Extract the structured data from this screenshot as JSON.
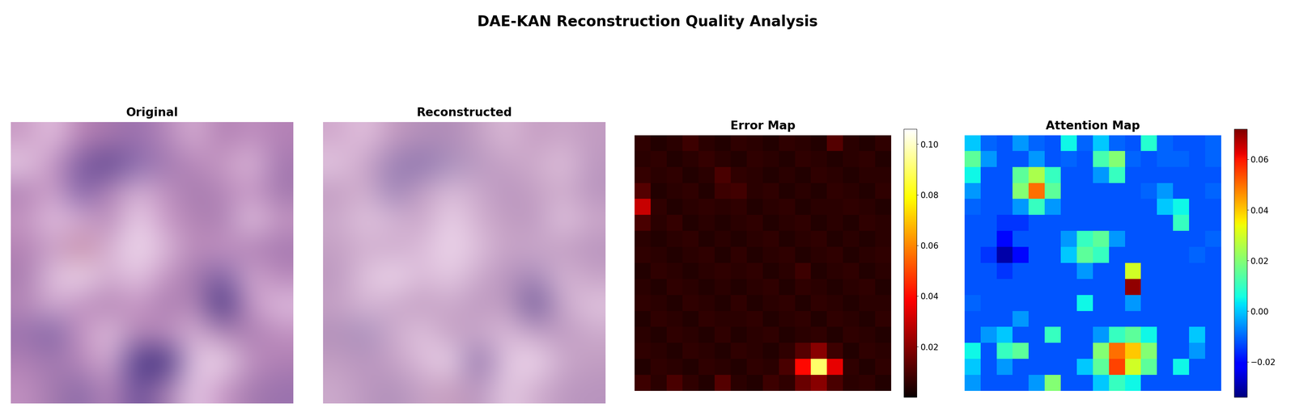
{
  "title": "DAE-KAN Reconstruction Quality Analysis",
  "chart_data": [
    {
      "type": "image",
      "title": "Original",
      "tick_labels": false,
      "pixels": [
        [
          "#c89ac4",
          "#e6c4e2",
          "#b882b4",
          "#a878ae",
          "#9a70ae",
          "#b688ba",
          "#d8b0d4",
          "#b07eb2",
          "#c090c0",
          "#b482b6"
        ],
        [
          "#e8cce6",
          "#c494c2",
          "#7a5aa0",
          "#5e4690",
          "#8a6cae",
          "#a078b0",
          "#b888ba",
          "#c69ac4",
          "#e0bcdc",
          "#a478b0"
        ],
        [
          "#b080b4",
          "#d0a4cc",
          "#8060a6",
          "#b486b8",
          "#d8b4d6",
          "#c092c0",
          "#a47aae",
          "#b486b8",
          "#c898c6",
          "#a278ae"
        ],
        [
          "#c496c2",
          "#e4c2e2",
          "#d4acd2",
          "#b88ab8",
          "#eed4ec",
          "#c898c6",
          "#b284b4",
          "#aa7eb2",
          "#e6c8e4",
          "#c496c2"
        ],
        [
          "#b482b4",
          "#c8a0c8",
          "#c48aa4",
          "#d8b4d6",
          "#f0dcee",
          "#dcbada",
          "#b888b8",
          "#c696c4",
          "#b080b4",
          "#a478b0"
        ],
        [
          "#a87cb0",
          "#e2c2e0",
          "#f0dcee",
          "#d2acd0",
          "#e6c8e4",
          "#c494c2",
          "#a47aae",
          "#7e60a4",
          "#d2aad0",
          "#b888ba"
        ],
        [
          "#b688b8",
          "#d4aed2",
          "#c090c0",
          "#b284b4",
          "#c898c6",
          "#a87cb0",
          "#b688b8",
          "#3c2c7c",
          "#c898c6",
          "#e0bee0"
        ],
        [
          "#9a72ae",
          "#7e62a4",
          "#c494c2",
          "#e2c2e0",
          "#b284b4",
          "#c090c0",
          "#d8b4d6",
          "#b284b4",
          "#a87cb0",
          "#c090c0"
        ],
        [
          "#b080b4",
          "#a078b0",
          "#b888ba",
          "#d8b0d4",
          "#4a3888",
          "#3c2c7c",
          "#e4c4e2",
          "#f0dcee",
          "#c090c0",
          "#b080b4"
        ],
        [
          "#c090c0",
          "#a47aae",
          "#8a6aa8",
          "#b888ba",
          "#6a4e98",
          "#a47aae",
          "#e8cce8",
          "#c898c6",
          "#a47aae",
          "#9a72ae"
        ]
      ]
    },
    {
      "type": "image",
      "title": "Reconstructed",
      "tick_labels": false,
      "pixels": [
        [
          "#d0a8cc",
          "#e4c4e0",
          "#c49ac0",
          "#b490ba",
          "#b08cb8",
          "#c4a0c4",
          "#dcbcd8",
          "#c49cc2",
          "#cca8ca",
          "#c29cc2"
        ],
        [
          "#e4c8e2",
          "#caa4c8",
          "#9a80b4",
          "#8c74ae",
          "#a890bc",
          "#b898c0",
          "#c6a2c6",
          "#ceaccc",
          "#e2c4de",
          "#bc98c0"
        ],
        [
          "#c29cc2",
          "#d4b2d0",
          "#9c82b6",
          "#c4a0c4",
          "#dcbeda",
          "#ccaacc",
          "#b894be",
          "#c4a0c4",
          "#d0aecd",
          "#b894be"
        ],
        [
          "#ccaacc",
          "#e2c6e0",
          "#d8b8d6",
          "#c8a4c8",
          "#ecd4ea",
          "#d2b0d0",
          "#c29ec2",
          "#bc98c0",
          "#e4c8e2",
          "#cca8ca"
        ],
        [
          "#c4a0c4",
          "#d2b0d0",
          "#ccaacc",
          "#dcbcda",
          "#eed8ec",
          "#dec0dc",
          "#c6a2c6",
          "#ccaacc",
          "#c29ec2",
          "#b894be"
        ],
        [
          "#bc98c0",
          "#e0c4de",
          "#f0daee",
          "#dabad8",
          "#e6cce4",
          "#ccaacc",
          "#b894be",
          "#a688b8",
          "#d8b8d6",
          "#c6a2c6"
        ],
        [
          "#c6a2c6",
          "#d8b8d6",
          "#ccaacc",
          "#c29ec2",
          "#ccaacc",
          "#bc98c0",
          "#c29ec2",
          "#6a5496",
          "#ccaacc",
          "#e2c6e0"
        ],
        [
          "#b290ba",
          "#a890bc",
          "#ccaacc",
          "#e2c6e0",
          "#c29ec2",
          "#ccaacc",
          "#dcbcda",
          "#c6a2c6",
          "#bc98c0",
          "#ccaacc"
        ],
        [
          "#c29ec2",
          "#b894be",
          "#c6a2c6",
          "#dcbcda",
          "#f0daee",
          "#8a6ca6",
          "#e2c6e0",
          "#f2dcf0",
          "#ccaacc",
          "#c29ec2"
        ],
        [
          "#ccaacc",
          "#bc98c0",
          "#b090ba",
          "#c6a2c6",
          "#c8a0c0",
          "#b894be",
          "#e6cce4",
          "#d2b0d0",
          "#bc98c0",
          "#b894be"
        ]
      ]
    },
    {
      "type": "heatmap",
      "title": "Error Map",
      "color": "hot",
      "tick_labels": false,
      "colorbar_range": [
        0,
        0.106
      ],
      "colorbar_ticks": [
        0.02,
        0.04,
        0.06,
        0.08,
        {
          "value": 0.1,
          "label": "0.10"
        }
      ],
      "cells": [
        [
          0.006,
          0.004,
          0.005,
          0.008,
          0.005,
          0.004,
          0.006,
          0.005,
          0.004,
          0.006,
          0.005,
          0.004,
          0.012,
          0.005,
          0.004,
          0.006
        ],
        [
          0.005,
          0.006,
          0.004,
          0.005,
          0.007,
          0.005,
          0.004,
          0.006,
          0.005,
          0.004,
          0.006,
          0.005,
          0.004,
          0.005,
          0.006,
          0.004
        ],
        [
          0.007,
          0.005,
          0.006,
          0.004,
          0.005,
          0.01,
          0.006,
          0.005,
          0.004,
          0.005,
          0.004,
          0.006,
          0.005,
          0.004,
          0.005,
          0.005
        ],
        [
          0.012,
          0.004,
          0.005,
          0.006,
          0.004,
          0.008,
          0.009,
          0.005,
          0.006,
          0.004,
          0.005,
          0.004,
          0.006,
          0.005,
          0.004,
          0.006
        ],
        [
          0.03,
          0.006,
          0.004,
          0.005,
          0.006,
          0.005,
          0.006,
          0.004,
          0.005,
          0.006,
          0.004,
          0.005,
          0.005,
          0.006,
          0.005,
          0.004
        ],
        [
          0.01,
          0.005,
          0.007,
          0.004,
          0.005,
          0.004,
          0.005,
          0.006,
          0.004,
          0.005,
          0.006,
          0.004,
          0.005,
          0.004,
          0.006,
          0.005
        ],
        [
          0.005,
          0.004,
          0.005,
          0.006,
          0.004,
          0.005,
          0.004,
          0.005,
          0.006,
          0.004,
          0.005,
          0.006,
          0.004,
          0.005,
          0.004,
          0.005
        ],
        [
          0.006,
          0.005,
          0.004,
          0.005,
          0.006,
          0.004,
          0.006,
          0.004,
          0.005,
          0.006,
          0.004,
          0.005,
          0.006,
          0.004,
          0.005,
          0.006
        ],
        [
          0.004,
          0.006,
          0.005,
          0.004,
          0.005,
          0.006,
          0.005,
          0.006,
          0.004,
          0.005,
          0.008,
          0.004,
          0.005,
          0.006,
          0.004,
          0.005
        ],
        [
          0.005,
          0.004,
          0.006,
          0.005,
          0.004,
          0.005,
          0.004,
          0.005,
          0.006,
          0.004,
          0.006,
          0.005,
          0.004,
          0.005,
          0.006,
          0.004
        ],
        [
          0.006,
          0.005,
          0.004,
          0.006,
          0.005,
          0.004,
          0.006,
          0.004,
          0.005,
          0.006,
          0.004,
          0.006,
          0.005,
          0.004,
          0.005,
          0.005
        ],
        [
          0.004,
          0.006,
          0.005,
          0.004,
          0.006,
          0.005,
          0.005,
          0.006,
          0.004,
          0.005,
          0.006,
          0.004,
          0.006,
          0.005,
          0.004,
          0.006
        ],
        [
          0.005,
          0.004,
          0.006,
          0.005,
          0.004,
          0.006,
          0.004,
          0.005,
          0.006,
          0.004,
          0.005,
          0.006,
          0.004,
          0.006,
          0.005,
          0.004
        ],
        [
          0.006,
          0.005,
          0.004,
          0.006,
          0.005,
          0.004,
          0.006,
          0.005,
          0.004,
          0.006,
          0.012,
          0.02,
          0.008,
          0.004,
          0.006,
          0.005
        ],
        [
          0.004,
          0.006,
          0.005,
          0.004,
          0.006,
          0.005,
          0.004,
          0.006,
          0.005,
          0.01,
          0.04,
          0.09,
          0.035,
          0.006,
          0.004,
          0.006
        ],
        [
          0.008,
          0.005,
          0.01,
          0.006,
          0.004,
          0.012,
          0.005,
          0.004,
          0.008,
          0.006,
          0.015,
          0.02,
          0.01,
          0.005,
          0.006,
          0.004
        ]
      ]
    },
    {
      "type": "heatmap",
      "title": "Attention Map",
      "color": "jet",
      "tick_labels": false,
      "colorbar_range": [
        -0.034,
        0.072
      ],
      "colorbar_ticks": [
        {
          "value": -0.02,
          "label": "−0.02"
        },
        {
          "value": 0,
          "label": "0.00"
        },
        0.02,
        0.04,
        0.06
      ],
      "cells": [
        [
          0.0,
          -0.01,
          -0.012,
          -0.005,
          -0.01,
          -0.012,
          0.005,
          -0.01,
          0.0,
          -0.01,
          -0.012,
          0.008,
          -0.01,
          -0.012,
          -0.012,
          -0.01
        ],
        [
          0.015,
          -0.005,
          -0.012,
          -0.012,
          -0.005,
          -0.012,
          -0.01,
          -0.012,
          0.012,
          0.02,
          -0.01,
          -0.012,
          -0.01,
          -0.01,
          -0.012,
          -0.01
        ],
        [
          0.005,
          -0.012,
          -0.012,
          0.015,
          0.025,
          0.01,
          -0.012,
          -0.012,
          -0.005,
          0.01,
          -0.012,
          -0.012,
          -0.012,
          -0.012,
          -0.012,
          -0.012
        ],
        [
          -0.005,
          -0.012,
          -0.012,
          0.02,
          0.05,
          0.015,
          -0.012,
          -0.012,
          -0.012,
          -0.012,
          -0.012,
          -0.01,
          -0.005,
          -0.012,
          -0.012,
          -0.01
        ],
        [
          -0.01,
          -0.012,
          -0.012,
          -0.005,
          0.01,
          -0.005,
          -0.012,
          -0.012,
          -0.012,
          -0.012,
          -0.012,
          -0.012,
          0.0,
          0.005,
          -0.012,
          -0.012
        ],
        [
          -0.012,
          -0.012,
          -0.015,
          -0.015,
          -0.012,
          -0.012,
          -0.012,
          -0.012,
          -0.012,
          -0.012,
          -0.012,
          -0.012,
          -0.012,
          0.01,
          -0.012,
          -0.012
        ],
        [
          -0.012,
          -0.012,
          -0.02,
          -0.012,
          -0.012,
          -0.012,
          -0.005,
          0.01,
          0.015,
          -0.005,
          -0.012,
          -0.012,
          -0.012,
          -0.012,
          -0.012,
          -0.01
        ],
        [
          -0.012,
          -0.015,
          -0.03,
          -0.02,
          -0.012,
          -0.012,
          0.0,
          0.015,
          0.01,
          -0.012,
          -0.012,
          -0.012,
          -0.012,
          -0.012,
          -0.01,
          -0.012
        ],
        [
          -0.012,
          -0.012,
          -0.015,
          -0.012,
          -0.012,
          -0.012,
          -0.012,
          -0.005,
          -0.012,
          -0.012,
          0.03,
          -0.012,
          -0.012,
          -0.012,
          -0.012,
          -0.012
        ],
        [
          -0.012,
          -0.012,
          -0.012,
          -0.012,
          -0.012,
          -0.012,
          -0.012,
          -0.012,
          -0.012,
          -0.012,
          0.07,
          -0.012,
          -0.012,
          -0.012,
          -0.012,
          -0.012
        ],
        [
          -0.01,
          -0.012,
          -0.012,
          -0.012,
          -0.012,
          -0.012,
          -0.012,
          0.005,
          -0.012,
          -0.012,
          -0.005,
          -0.012,
          -0.012,
          -0.012,
          -0.012,
          -0.012
        ],
        [
          -0.012,
          -0.012,
          -0.012,
          -0.005,
          -0.012,
          -0.012,
          -0.012,
          -0.012,
          -0.012,
          -0.012,
          -0.012,
          -0.012,
          -0.012,
          -0.012,
          -0.012,
          -0.012
        ],
        [
          -0.012,
          -0.005,
          0.0,
          -0.012,
          -0.012,
          0.01,
          -0.012,
          -0.012,
          -0.005,
          0.01,
          0.015,
          0.005,
          -0.012,
          -0.012,
          0.0,
          -0.012
        ],
        [
          0.005,
          -0.012,
          0.01,
          0.015,
          -0.012,
          -0.012,
          -0.012,
          -0.012,
          0.02,
          0.05,
          0.04,
          0.02,
          -0.012,
          -0.012,
          -0.005,
          -0.012
        ],
        [
          0.0,
          -0.012,
          -0.005,
          -0.012,
          -0.012,
          -0.012,
          -0.012,
          0.0,
          0.015,
          0.055,
          0.03,
          0.015,
          -0.012,
          0.005,
          -0.012,
          -0.012
        ],
        [
          -0.005,
          -0.012,
          -0.012,
          -0.012,
          -0.005,
          0.02,
          -0.012,
          -0.012,
          0.0,
          0.01,
          0.005,
          -0.012,
          -0.012,
          -0.012,
          -0.012,
          -0.012
        ]
      ]
    }
  ]
}
